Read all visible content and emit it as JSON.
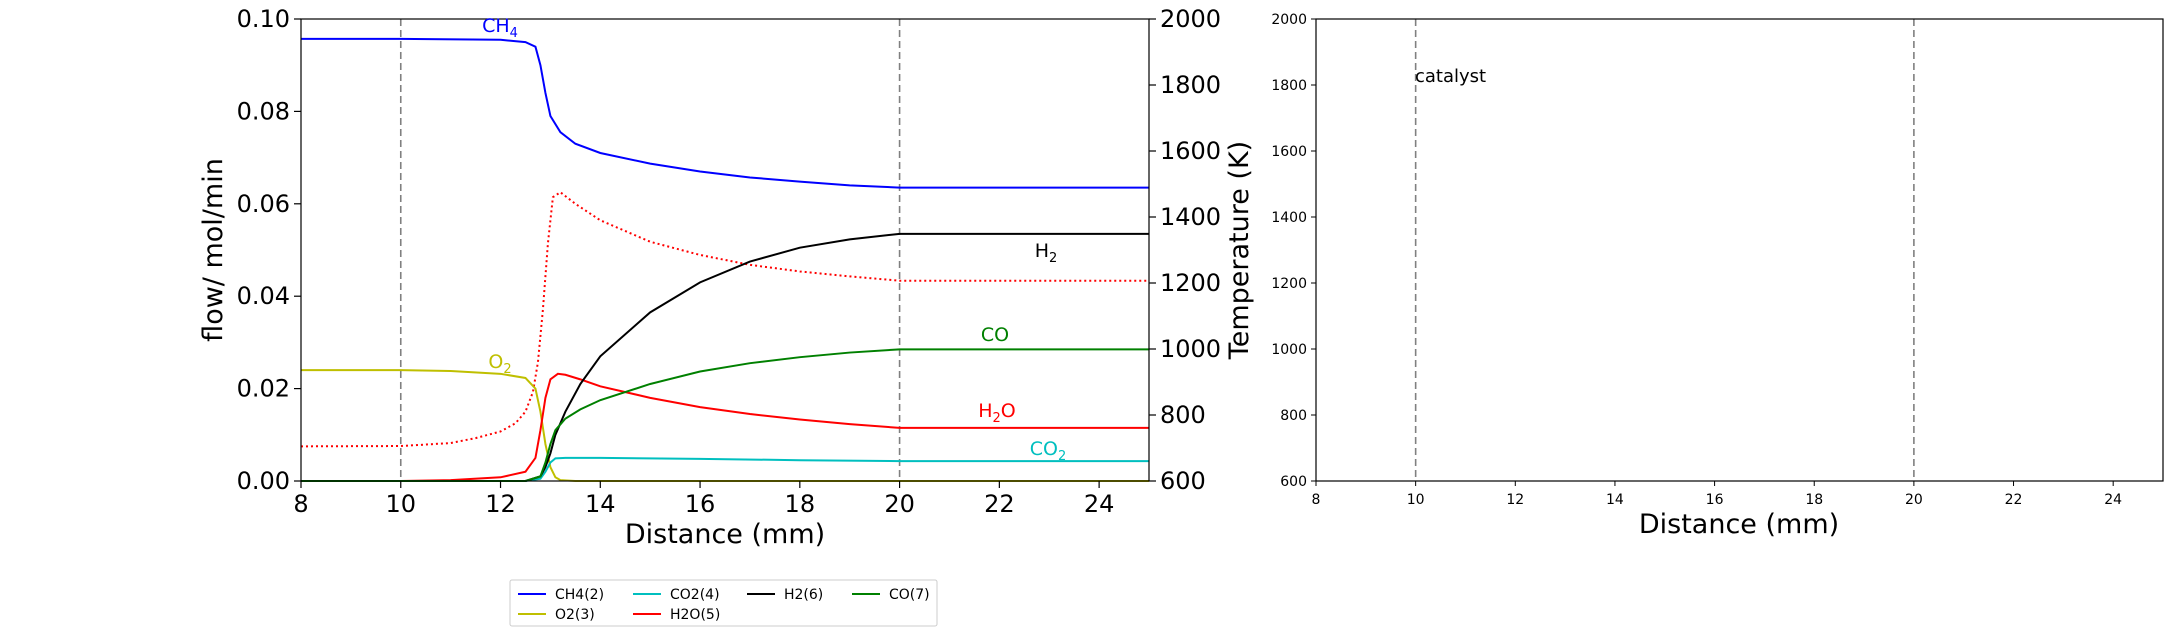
{
  "chart_data": [
    {
      "type": "line",
      "xlabel": "Distance (mm)",
      "ylabel": "flow/ mol/min",
      "y2label": "Temperature (K)",
      "xlim": [
        8,
        25
      ],
      "ylim": [
        0,
        0.1
      ],
      "y2lim": [
        600,
        2000
      ],
      "xticks": [
        "8",
        "10",
        "12",
        "14",
        "16",
        "18",
        "20",
        "22",
        "24"
      ],
      "yticks": [
        "0.00",
        "0.02",
        "0.04",
        "0.06",
        "0.08",
        "0.10"
      ],
      "y2ticks": [
        "600",
        "800",
        "1000",
        "1200",
        "1400",
        "1600",
        "1800",
        "2000"
      ],
      "vlines": [
        10,
        20
      ],
      "grid": false,
      "series": [
        {
          "name": "CH4(2)",
          "color": "#0000ff",
          "label": "CH",
          "label_sub": "4",
          "x": [
            8,
            10,
            12,
            12.5,
            12.7,
            12.8,
            12.9,
            13.0,
            13.2,
            13.5,
            14,
            15,
            16,
            17,
            18,
            19,
            20,
            25
          ],
          "values": [
            0.0957,
            0.0957,
            0.0955,
            0.095,
            0.094,
            0.09,
            0.084,
            0.079,
            0.0755,
            0.073,
            0.071,
            0.0687,
            0.067,
            0.0657,
            0.0648,
            0.064,
            0.0635,
            0.0635
          ]
        },
        {
          "name": "O2(3)",
          "color": "#bfbf00",
          "label": "O",
          "label_sub": "2",
          "x": [
            8,
            10,
            11,
            12,
            12.5,
            12.7,
            12.8,
            12.9,
            13.0,
            13.1,
            13.2,
            13.5,
            25
          ],
          "values": [
            0.024,
            0.024,
            0.0238,
            0.0232,
            0.0223,
            0.02,
            0.015,
            0.008,
            0.003,
            0.0008,
            0.0002,
            0.0,
            0.0
          ]
        },
        {
          "name": "CO2(4)",
          "color": "#00bfbf",
          "label": "CO",
          "label_sub": "2",
          "x": [
            8,
            12.5,
            12.8,
            12.9,
            13.0,
            13.1,
            13.3,
            14,
            16,
            18,
            20,
            25
          ],
          "values": [
            0.0,
            0.0,
            0.0005,
            0.002,
            0.004,
            0.0049,
            0.005,
            0.005,
            0.0048,
            0.0045,
            0.0043,
            0.0043
          ]
        },
        {
          "name": "H2O(5)",
          "color": "#ff0000",
          "label": "H",
          "label_sub": "2",
          "label_tail": "O",
          "x": [
            8,
            10,
            11,
            12,
            12.5,
            12.7,
            12.8,
            12.9,
            13.0,
            13.15,
            13.3,
            13.6,
            14,
            15,
            16,
            17,
            18,
            19,
            20,
            25
          ],
          "values": [
            0.0,
            0.0,
            0.0002,
            0.0008,
            0.002,
            0.005,
            0.011,
            0.018,
            0.022,
            0.0232,
            0.023,
            0.022,
            0.0205,
            0.018,
            0.016,
            0.0145,
            0.0133,
            0.0123,
            0.0115,
            0.0115
          ]
        },
        {
          "name": "H2(6)",
          "color": "#000000",
          "label": "H",
          "label_sub": "2",
          "x": [
            8,
            12.5,
            12.8,
            12.9,
            13.0,
            13.1,
            13.3,
            13.6,
            14,
            15,
            16,
            17,
            18,
            19,
            20,
            25
          ],
          "values": [
            0.0,
            0.0,
            0.001,
            0.003,
            0.006,
            0.01,
            0.015,
            0.021,
            0.027,
            0.0365,
            0.043,
            0.0475,
            0.0505,
            0.0523,
            0.0535,
            0.0535
          ]
        },
        {
          "name": "CO(7)",
          "color": "#008000",
          "label": "CO",
          "x": [
            8,
            12.5,
            12.8,
            12.9,
            13.0,
            13.1,
            13.3,
            13.6,
            14,
            15,
            16,
            17,
            18,
            19,
            20,
            25
          ],
          "values": [
            0.0,
            0.0,
            0.001,
            0.004,
            0.008,
            0.011,
            0.0135,
            0.0155,
            0.0175,
            0.021,
            0.0237,
            0.0255,
            0.0268,
            0.0278,
            0.0285,
            0.0285
          ]
        }
      ],
      "temperature": {
        "color": "#ff0000",
        "style": "dotted",
        "x": [
          8,
          10,
          11,
          11.5,
          12,
          12.3,
          12.5,
          12.65,
          12.75,
          12.85,
          12.95,
          13.05,
          13.2,
          13.5,
          14,
          15,
          16,
          17,
          18,
          19,
          20,
          25
        ],
        "values": [
          705,
          706,
          715,
          730,
          750,
          775,
          810,
          870,
          960,
          1120,
          1320,
          1460,
          1475,
          1440,
          1390,
          1325,
          1285,
          1255,
          1235,
          1220,
          1207,
          1207
        ]
      },
      "legend": {
        "placement": "lower-center",
        "ncol": 4,
        "entries": [
          {
            "label": "CH4(2)",
            "color": "#0000ff"
          },
          {
            "label": "CO2(4)",
            "color": "#00bfbf"
          },
          {
            "label": "H2(6)",
            "color": "#000000"
          },
          {
            "label": "CO(7)",
            "color": "#008000"
          },
          {
            "label": "O2(3)",
            "color": "#bfbf00"
          },
          {
            "label": "H2O(5)",
            "color": "#ff0000"
          }
        ]
      }
    },
    {
      "type": "line",
      "xlabel": "Distance (mm)",
      "xlim": [
        8,
        25
      ],
      "ylim": [
        600,
        2000
      ],
      "xticks": [
        "8",
        "10",
        "12",
        "14",
        "16",
        "18",
        "20",
        "22",
        "24"
      ],
      "yticks": [
        "600",
        "800",
        "1000",
        "1200",
        "1400",
        "1600",
        "1800",
        "2000"
      ],
      "vlines": [
        10,
        20
      ],
      "grid": false,
      "annotation": "catalyst",
      "series": []
    }
  ]
}
